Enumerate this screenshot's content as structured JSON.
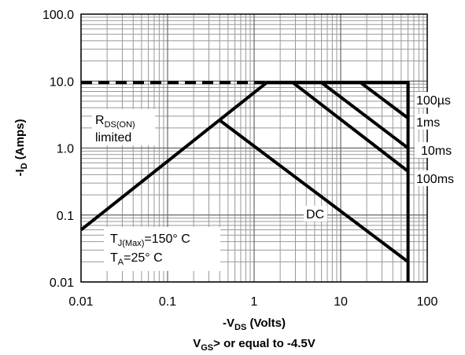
{
  "chart_data": {
    "type": "line",
    "x_scale": "log",
    "y_scale": "log",
    "xlim": [
      0.01,
      100
    ],
    "ylim": [
      0.01,
      100
    ],
    "grid": true,
    "x_ticks": [
      "0.01",
      "0.1",
      "1",
      "10",
      "100"
    ],
    "y_ticks": [
      "100.0",
      "10.0",
      "1.0",
      "0.1",
      "0.01"
    ],
    "ylabel": {
      "main": "-I",
      "sub": "D",
      "rest": " (Amps)"
    },
    "xlabel": {
      "main": "-V",
      "sub": "DS",
      "rest": " (Volts)"
    },
    "footnote": {
      "main": "V",
      "sub": "GS",
      "rest": "> or equal to -4.5V"
    },
    "series": [
      {
        "name": "100µs",
        "points": [
          [
            17,
            9.5
          ],
          [
            60,
            2.8
          ],
          [
            60,
            9.5
          ]
        ]
      },
      {
        "name": "1ms",
        "points": [
          [
            6,
            9.5
          ],
          [
            60,
            1.0
          ]
        ]
      },
      {
        "name": "10ms",
        "points": [
          [
            2.8,
            9.5
          ],
          [
            60,
            0.45
          ]
        ]
      },
      {
        "name": "100ms",
        "points": [
          [
            0.01,
            0.06
          ],
          [
            1.4,
            9.5
          ],
          [
            60,
            9.5
          ],
          [
            60,
            0.01
          ]
        ]
      },
      {
        "name": "DC",
        "points": [
          [
            0.4,
            2.6
          ],
          [
            60,
            0.02
          ]
        ]
      },
      {
        "name": "RDS(ON) limited",
        "dashed": true,
        "points": [
          [
            0.01,
            9.5
          ],
          [
            1.4,
            9.5
          ]
        ]
      }
    ],
    "annotations": {
      "rdson_main": "R",
      "rdson_sub": "DS(ON)",
      "rdson_line2": "limited",
      "tj_main": "T",
      "tj_sub": "J(Max)",
      "tj_rest": "=150° C",
      "ta_main": "T",
      "ta_sub": "A",
      "ta_rest": "=25° C",
      "label_100us": "100µs",
      "label_1ms": "1ms",
      "label_10ms": "10ms",
      "label_100ms": "100ms",
      "label_dc": "DC"
    }
  }
}
